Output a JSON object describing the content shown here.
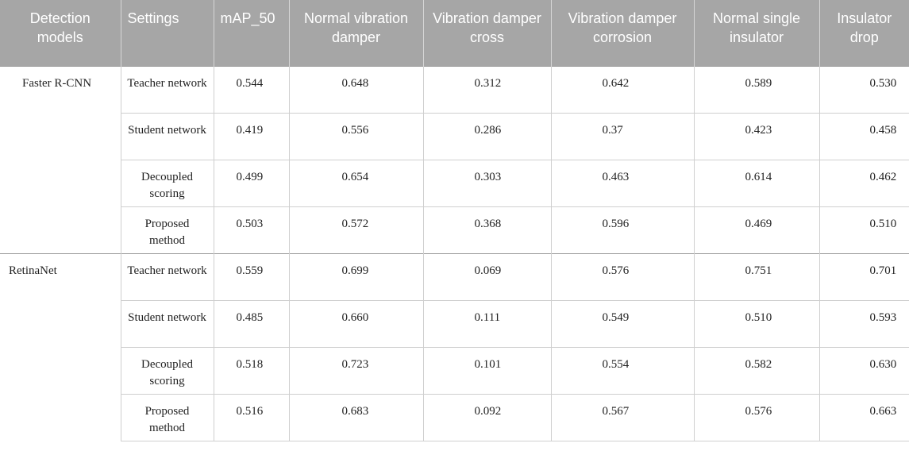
{
  "table": {
    "headers": [
      "Detection models",
      "Settings",
      "mAP_50",
      "Normal vibration damper",
      "Vibration damper cross",
      "Vibration damper corrosion",
      "Normal single insulator",
      "Insulator drop"
    ],
    "groups": [
      {
        "model": "Faster R-CNN",
        "rows": [
          {
            "setting": "Teacher network",
            "values": [
              "0.544",
              "0.648",
              "0.312",
              "0.642",
              "0.589",
              "0.530"
            ]
          },
          {
            "setting": "Student network",
            "values": [
              "0.419",
              "0.556",
              "0.286",
              "0.37",
              "0.423",
              "0.458"
            ]
          },
          {
            "setting": "Decoupled scoring",
            "values": [
              "0.499",
              "0.654",
              "0.303",
              "0.463",
              "0.614",
              "0.462"
            ]
          },
          {
            "setting": "Proposed method",
            "values": [
              "0.503",
              "0.572",
              "0.368",
              "0.596",
              "0.469",
              "0.510"
            ]
          }
        ]
      },
      {
        "model": "RetinaNet",
        "rows": [
          {
            "setting": "Teacher network",
            "values": [
              "0.559",
              "0.699",
              "0.069",
              "0.576",
              "0.751",
              "0.701"
            ]
          },
          {
            "setting": "Student network",
            "values": [
              "0.485",
              "0.660",
              "0.111",
              "0.549",
              "0.510",
              "0.593"
            ]
          },
          {
            "setting": "Decoupled scoring",
            "values": [
              "0.518",
              "0.723",
              "0.101",
              "0.554",
              "0.582",
              "0.630"
            ]
          },
          {
            "setting": "Proposed method",
            "values": [
              "0.516",
              "0.683",
              "0.092",
              "0.567",
              "0.576",
              "0.663"
            ]
          }
        ]
      }
    ]
  }
}
